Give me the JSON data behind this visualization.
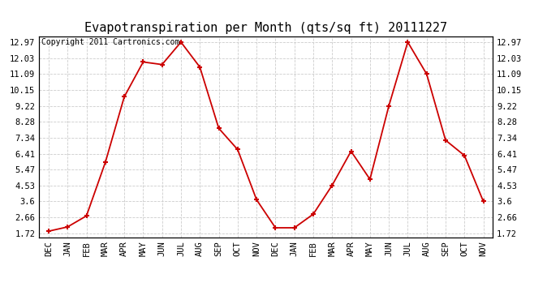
{
  "title": "Evapotranspiration per Month (qts/sq ft) 20111227",
  "copyright": "Copyright 2011 Cartronics.com",
  "x_labels": [
    "DEC",
    "JAN",
    "FEB",
    "MAR",
    "APR",
    "MAY",
    "JUN",
    "JUL",
    "AUG",
    "SEP",
    "OCT",
    "NOV",
    "DEC",
    "JAN",
    "FEB",
    "MAR",
    "APR",
    "MAY",
    "JUN",
    "JUL",
    "AUG",
    "SEP",
    "OCT",
    "NOV"
  ],
  "y_values": [
    1.85,
    2.1,
    2.75,
    5.9,
    9.75,
    11.8,
    11.65,
    12.97,
    11.5,
    7.9,
    6.65,
    3.7,
    2.05,
    2.05,
    2.85,
    4.55,
    6.55,
    4.9,
    9.22,
    12.97,
    11.09,
    7.2,
    6.3,
    3.6
  ],
  "line_color": "#cc0000",
  "marker_color": "#cc0000",
  "background_color": "#ffffff",
  "grid_color": "#cccccc",
  "title_fontsize": 11,
  "copyright_fontsize": 7,
  "tick_fontsize": 7.5,
  "y_ticks": [
    1.72,
    2.66,
    3.6,
    4.53,
    5.47,
    6.41,
    7.34,
    8.28,
    9.22,
    10.15,
    11.09,
    12.03,
    12.97
  ],
  "ylim": [
    1.5,
    13.3
  ]
}
